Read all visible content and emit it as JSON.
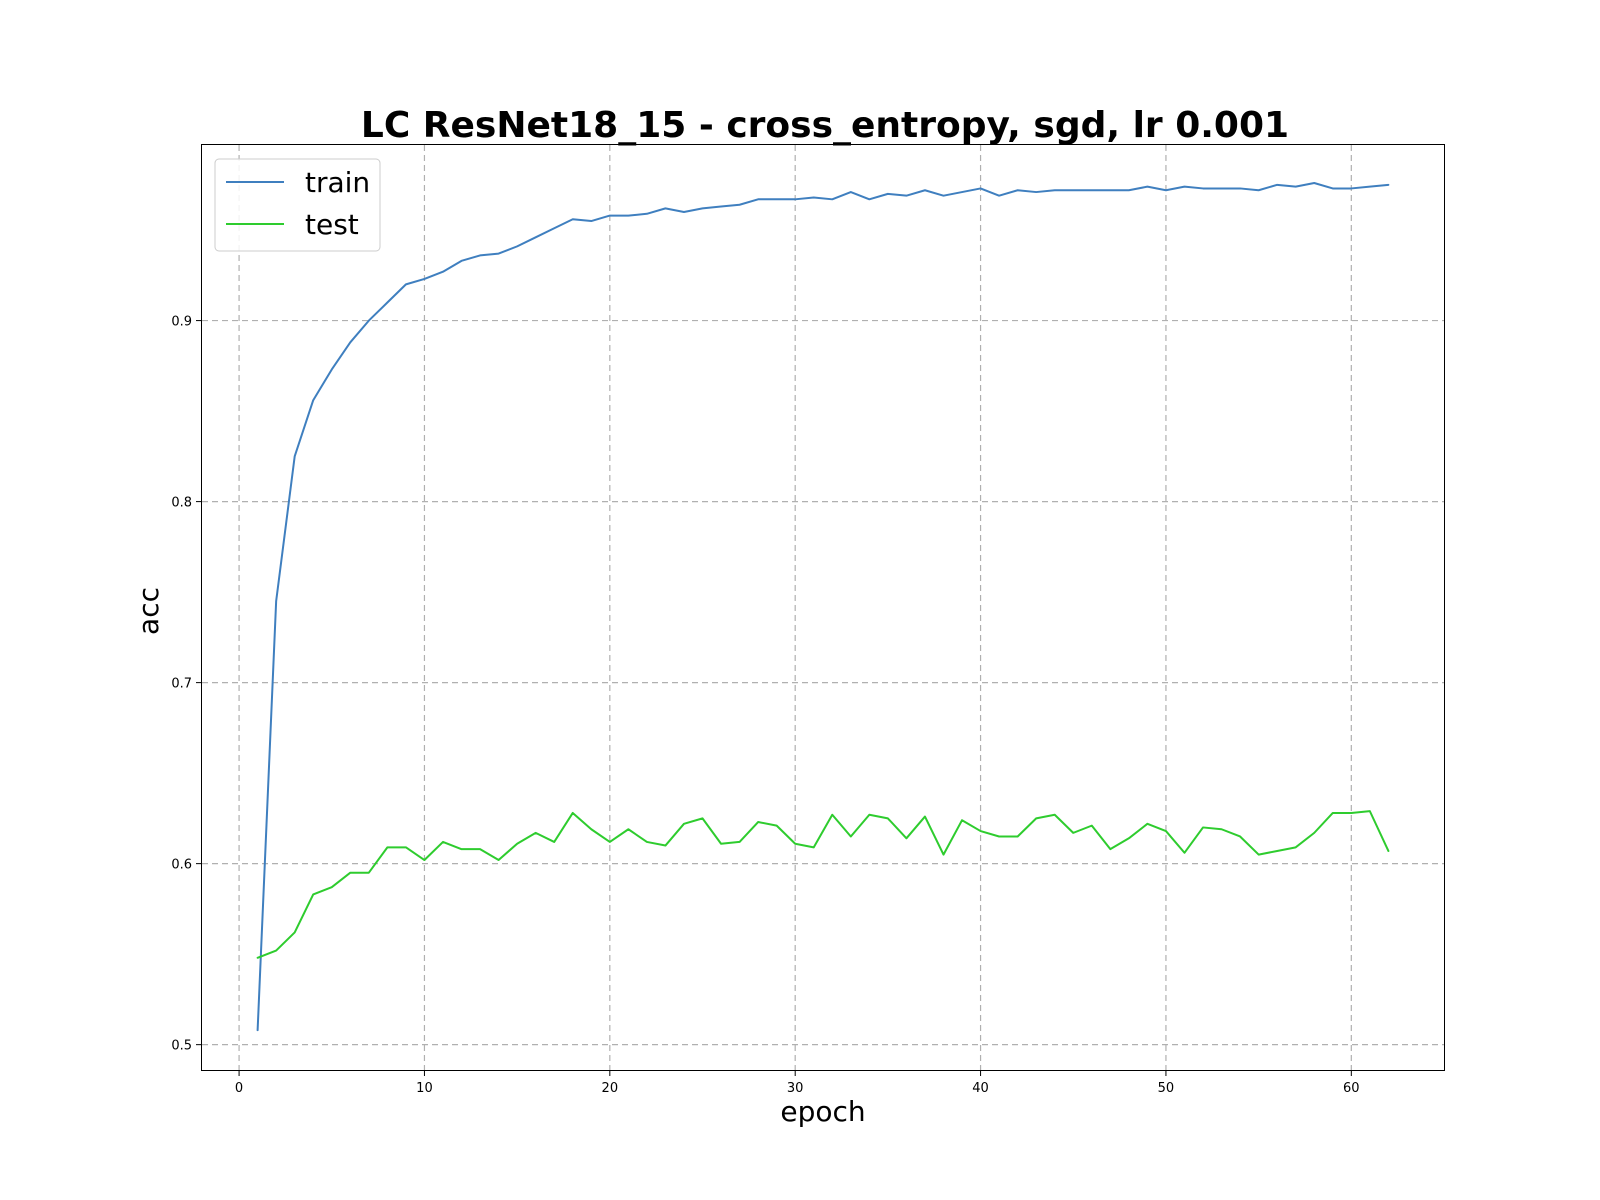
{
  "chart_data": {
    "type": "line",
    "title": "LC ResNet18_15 - cross_entropy, sgd, lr 0.001",
    "xlabel": "epoch",
    "ylabel": "acc",
    "xlim": [
      -2,
      65
    ],
    "ylim": [
      0.486,
      0.997
    ],
    "xticks": [
      0,
      10,
      20,
      30,
      40,
      50,
      60
    ],
    "yticks": [
      0.5,
      0.6,
      0.7,
      0.8,
      0.9
    ],
    "grid": true,
    "legend_position": "upper-left",
    "x": [
      1,
      2,
      3,
      4,
      5,
      6,
      7,
      8,
      9,
      10,
      11,
      12,
      13,
      14,
      15,
      16,
      17,
      18,
      19,
      20,
      21,
      22,
      23,
      24,
      25,
      26,
      27,
      28,
      29,
      30,
      31,
      32,
      33,
      34,
      35,
      36,
      37,
      38,
      39,
      40,
      41,
      42,
      43,
      44,
      45,
      46,
      47,
      48,
      49,
      50,
      51,
      52,
      53,
      54,
      55,
      56,
      57,
      58,
      59,
      60,
      61,
      62
    ],
    "series": [
      {
        "name": "train",
        "color": "#3f7fbf",
        "values": [
          0.508,
          0.745,
          0.825,
          0.856,
          0.873,
          0.888,
          0.9,
          0.91,
          0.92,
          0.923,
          0.927,
          0.933,
          0.936,
          0.937,
          0.941,
          0.946,
          0.951,
          0.956,
          0.955,
          0.958,
          0.958,
          0.959,
          0.962,
          0.96,
          0.962,
          0.963,
          0.964,
          0.967,
          0.967,
          0.967,
          0.968,
          0.967,
          0.971,
          0.967,
          0.97,
          0.969,
          0.972,
          0.969,
          0.971,
          0.973,
          0.969,
          0.972,
          0.971,
          0.972,
          0.972,
          0.972,
          0.972,
          0.972,
          0.974,
          0.972,
          0.974,
          0.973,
          0.973,
          0.973,
          0.972,
          0.975,
          0.974,
          0.976,
          0.973,
          0.973,
          0.974,
          0.975
        ]
      },
      {
        "name": "test",
        "color": "#2ecc2e",
        "values": [
          0.548,
          0.552,
          0.562,
          0.583,
          0.587,
          0.595,
          0.595,
          0.609,
          0.609,
          0.602,
          0.612,
          0.608,
          0.608,
          0.602,
          0.611,
          0.617,
          0.612,
          0.628,
          0.619,
          0.612,
          0.619,
          0.612,
          0.61,
          0.622,
          0.625,
          0.611,
          0.612,
          0.623,
          0.621,
          0.611,
          0.609,
          0.627,
          0.615,
          0.627,
          0.625,
          0.614,
          0.626,
          0.605,
          0.624,
          0.618,
          0.615,
          0.615,
          0.625,
          0.627,
          0.617,
          0.621,
          0.608,
          0.614,
          0.622,
          0.618,
          0.606,
          0.62,
          0.619,
          0.615,
          0.605,
          0.607,
          0.609,
          0.617,
          0.628,
          0.628,
          0.629,
          0.607
        ]
      }
    ]
  }
}
